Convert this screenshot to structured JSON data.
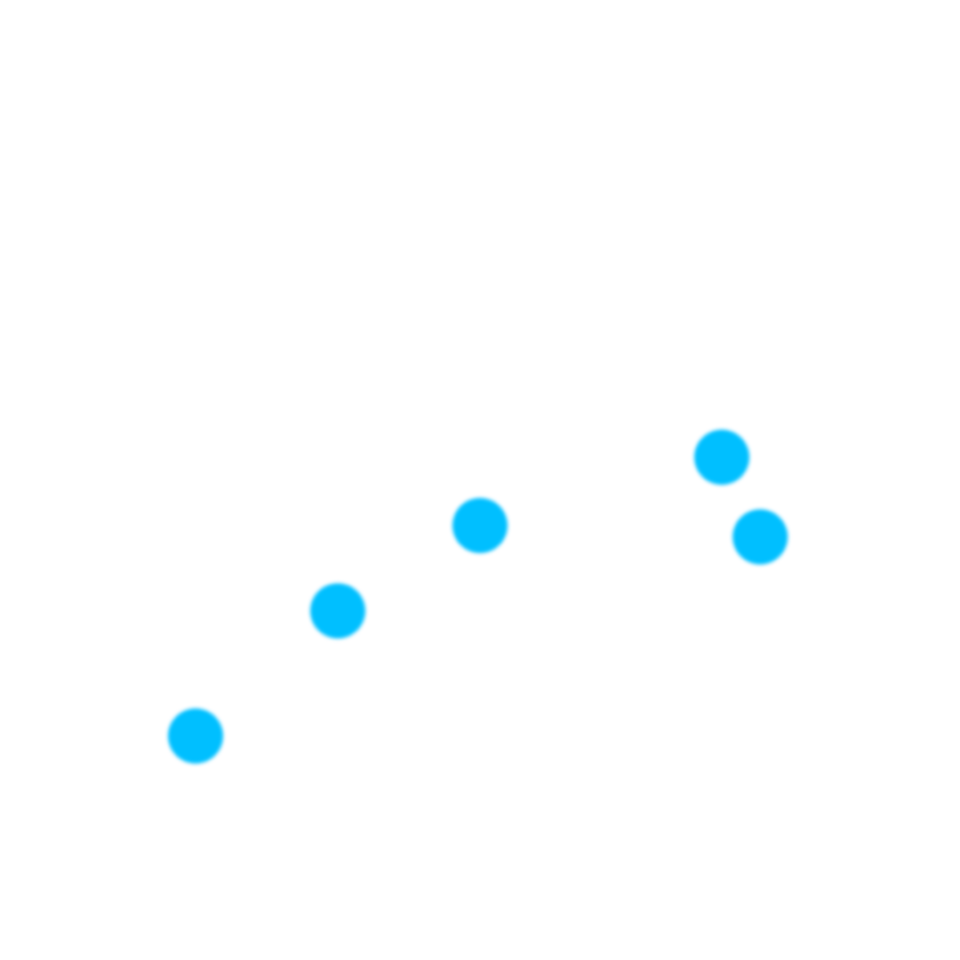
{
  "chart_data": {
    "type": "scatter",
    "title": "",
    "xlabel": "",
    "ylabel": "",
    "grid": false,
    "legend": "none",
    "color": "#00BFFF",
    "series": [
      {
        "points": [
          {
            "x": 1,
            "y": 1.0
          },
          {
            "x": 2,
            "y": 2.1
          },
          {
            "x": 3,
            "y": 2.85
          },
          {
            "x": 4.7,
            "y": 3.45
          },
          {
            "x": 4.97,
            "y": 2.75
          }
        ]
      }
    ],
    "xlim": [
      0,
      6
    ],
    "ylim": [
      -0.5,
      7
    ]
  }
}
